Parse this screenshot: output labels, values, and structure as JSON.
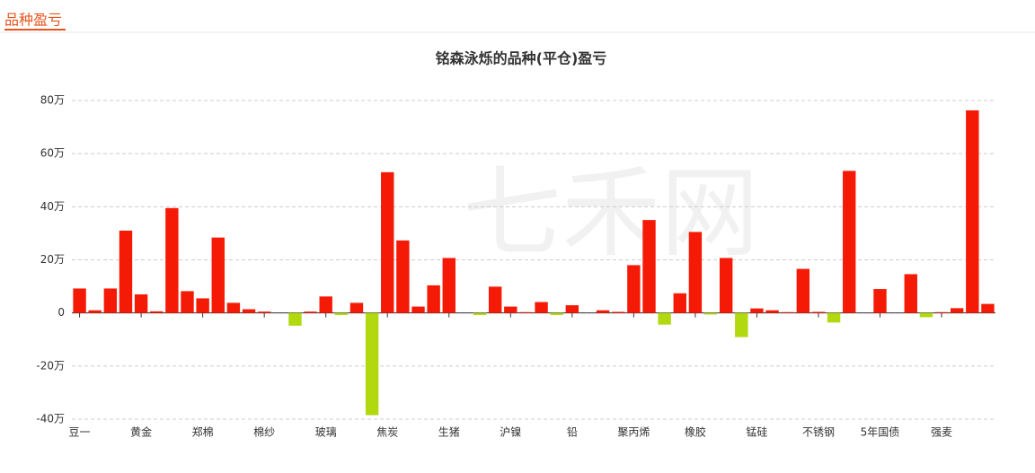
{
  "header": {
    "title": "品种盈亏"
  },
  "chart_data": {
    "type": "bar",
    "title": "铭森泳烁的品种(平仓)盈亏",
    "watermark": "七禾网",
    "categories": [
      "豆一",
      null,
      null,
      null,
      "黄金",
      null,
      null,
      null,
      "郑棉",
      null,
      null,
      null,
      "棉纱",
      null,
      null,
      null,
      "玻璃",
      null,
      null,
      null,
      "焦炭",
      null,
      null,
      null,
      "生猪",
      null,
      null,
      null,
      "沪镍",
      null,
      null,
      null,
      "铅",
      null,
      null,
      null,
      "聚丙烯",
      null,
      null,
      null,
      "橡胶",
      null,
      null,
      null,
      "锰硅",
      null,
      null,
      null,
      "不锈钢",
      null,
      null,
      null,
      "5年国债",
      null,
      null,
      null,
      "强麦",
      null,
      null,
      null
    ],
    "values": [
      9.2,
      1,
      9.2,
      31,
      7,
      0.6,
      39.5,
      8.2,
      5.5,
      28.4,
      3.8,
      1.4,
      0.5,
      0,
      -4.8,
      0.5,
      6.2,
      -0.8,
      3.8,
      -38.5,
      53,
      27.3,
      2.4,
      10.4,
      20.7,
      0,
      -0.8,
      9.9,
      2.4,
      0.3,
      4.1,
      -0.8,
      2.9,
      0,
      1,
      0.4,
      18,
      35,
      -4.4,
      7.4,
      30.5,
      -0.6,
      20.7,
      -9.1,
      1.7,
      1,
      0.3,
      16.6,
      0.4,
      -3.6,
      53.5,
      0,
      9,
      0,
      14.6,
      -1.6,
      0.3,
      1.8,
      76.3,
      3.4
    ],
    "positive_color": "#f51a06",
    "negative_color": "#b2d80f",
    "ylim": [
      -40,
      80
    ],
    "yticks": [
      {
        "value": -40,
        "label": "-40万"
      },
      {
        "value": -20,
        "label": "-20万"
      },
      0,
      {
        "value": 20,
        "label": "20万"
      },
      {
        "value": 40,
        "label": "40万"
      },
      {
        "value": 60,
        "label": "60万"
      },
      {
        "value": 80,
        "label": "80万"
      }
    ],
    "grid": true
  }
}
